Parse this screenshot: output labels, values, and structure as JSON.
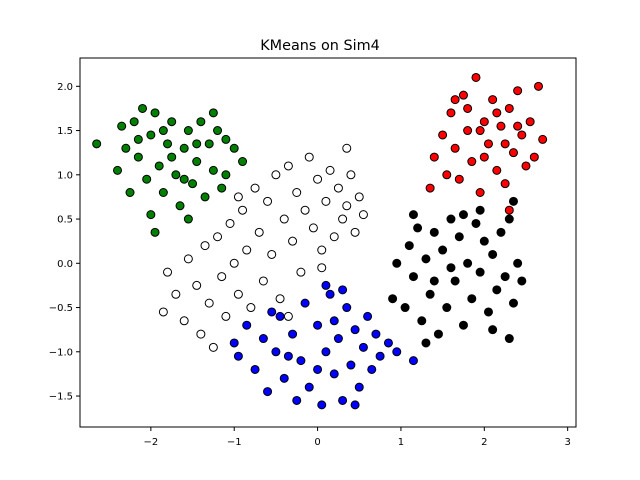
{
  "chart_data": {
    "type": "scatter",
    "title": "KMeans on Sim4",
    "xlabel": "",
    "ylabel": "",
    "xlim": [
      -2.85,
      3.1
    ],
    "ylim": [
      -1.85,
      2.32
    ],
    "x_ticks": [
      -2,
      -1,
      0,
      1,
      2,
      3
    ],
    "y_ticks": [
      -1.5,
      -1.0,
      -0.5,
      0.0,
      0.5,
      1.0,
      1.5,
      2.0
    ],
    "x_tick_labels": [
      "−2",
      "−1",
      "0",
      "1",
      "2",
      "3"
    ],
    "y_tick_labels": [
      "−1.5",
      "−1.0",
      "−0.5",
      "0.0",
      "0.5",
      "1.0",
      "1.5",
      "2.0"
    ],
    "grid": false,
    "legend": "none",
    "marker_edge_color": "#000000",
    "series": [
      {
        "color": "#008000",
        "points": [
          [
            -2.65,
            1.35
          ],
          [
            -2.4,
            1.05
          ],
          [
            -2.3,
            1.3
          ],
          [
            -2.35,
            1.55
          ],
          [
            -2.2,
            1.6
          ],
          [
            -2.15,
            1.2
          ],
          [
            -2.05,
            0.95
          ],
          [
            -2.0,
            1.45
          ],
          [
            -1.95,
            1.7
          ],
          [
            -1.9,
            1.1
          ],
          [
            -1.85,
            0.8
          ],
          [
            -1.8,
            1.35
          ],
          [
            -1.75,
            1.6
          ],
          [
            -1.7,
            1.0
          ],
          [
            -1.65,
            0.65
          ],
          [
            -1.6,
            1.3
          ],
          [
            -1.55,
            1.5
          ],
          [
            -1.5,
            0.9
          ],
          [
            -1.45,
            1.15
          ],
          [
            -1.4,
            1.6
          ],
          [
            -1.35,
            0.75
          ],
          [
            -1.3,
            1.35
          ],
          [
            -1.25,
            1.05
          ],
          [
            -1.2,
            1.5
          ],
          [
            -1.15,
            0.85
          ],
          [
            -1.1,
            1.4
          ],
          [
            -1.0,
            1.3
          ],
          [
            -0.9,
            1.15
          ],
          [
            -2.0,
            0.55
          ],
          [
            -1.95,
            0.35
          ],
          [
            -1.55,
            0.5
          ],
          [
            -1.25,
            1.7
          ],
          [
            -1.1,
            1.0
          ],
          [
            -2.25,
            0.8
          ],
          [
            -2.1,
            1.75
          ],
          [
            -1.75,
            1.2
          ],
          [
            -1.6,
            0.95
          ],
          [
            -1.85,
            1.5
          ],
          [
            -1.45,
            1.35
          ],
          [
            -2.15,
            1.4
          ]
        ]
      },
      {
        "color": "#ff0000",
        "points": [
          [
            1.35,
            0.85
          ],
          [
            1.4,
            1.2
          ],
          [
            1.5,
            1.45
          ],
          [
            1.55,
            1.0
          ],
          [
            1.6,
            1.7
          ],
          [
            1.65,
            1.3
          ],
          [
            1.7,
            0.95
          ],
          [
            1.75,
            1.9
          ],
          [
            1.8,
            1.5
          ],
          [
            1.85,
            1.15
          ],
          [
            1.9,
            2.1
          ],
          [
            1.95,
            0.8
          ],
          [
            2.0,
            1.6
          ],
          [
            2.05,
            1.35
          ],
          [
            2.1,
            1.85
          ],
          [
            2.15,
            1.05
          ],
          [
            2.2,
            1.55
          ],
          [
            2.25,
            0.9
          ],
          [
            2.3,
            1.75
          ],
          [
            2.35,
            1.25
          ],
          [
            2.4,
            1.95
          ],
          [
            2.45,
            1.45
          ],
          [
            2.5,
            1.1
          ],
          [
            2.55,
            1.6
          ],
          [
            2.6,
            1.2
          ],
          [
            2.7,
            1.4
          ],
          [
            2.3,
            0.6
          ],
          [
            2.65,
            2.0
          ],
          [
            1.65,
            1.85
          ],
          [
            2.0,
            1.2
          ],
          [
            1.8,
            1.75
          ],
          [
            2.25,
            1.35
          ],
          [
            1.95,
            1.5
          ],
          [
            2.15,
            1.7
          ],
          [
            2.4,
            1.55
          ]
        ]
      },
      {
        "color": "#0000ff",
        "points": [
          [
            -1.0,
            -0.9
          ],
          [
            -0.95,
            -1.05
          ],
          [
            -0.85,
            -0.7
          ],
          [
            -0.75,
            -1.2
          ],
          [
            -0.65,
            -0.85
          ],
          [
            -0.6,
            -1.45
          ],
          [
            -0.5,
            -1.0
          ],
          [
            -0.45,
            -0.6
          ],
          [
            -0.4,
            -1.3
          ],
          [
            -0.3,
            -0.8
          ],
          [
            -0.2,
            -1.1
          ],
          [
            -0.15,
            -0.45
          ],
          [
            -0.1,
            -1.4
          ],
          [
            0.0,
            -0.7
          ],
          [
            0.05,
            -1.6
          ],
          [
            0.1,
            -1.0
          ],
          [
            0.15,
            -0.35
          ],
          [
            0.2,
            -1.25
          ],
          [
            0.25,
            -0.85
          ],
          [
            0.3,
            -1.55
          ],
          [
            0.35,
            -0.5
          ],
          [
            0.4,
            -1.15
          ],
          [
            0.45,
            -0.75
          ],
          [
            0.5,
            -1.4
          ],
          [
            0.55,
            -0.95
          ],
          [
            0.6,
            -0.6
          ],
          [
            0.65,
            -1.2
          ],
          [
            0.7,
            -0.8
          ],
          [
            0.75,
            -1.05
          ],
          [
            0.85,
            -0.9
          ],
          [
            0.95,
            -1.0
          ],
          [
            1.15,
            -1.1
          ],
          [
            -0.25,
            -1.55
          ],
          [
            0.1,
            -0.25
          ],
          [
            -0.55,
            -0.55
          ],
          [
            0.3,
            -0.3
          ],
          [
            0.45,
            -1.6
          ],
          [
            -0.35,
            -1.05
          ],
          [
            0.0,
            -1.2
          ],
          [
            0.2,
            -0.65
          ]
        ]
      },
      {
        "color": "#000000",
        "points": [
          [
            0.9,
            -0.4
          ],
          [
            0.95,
            0.0
          ],
          [
            1.05,
            -0.5
          ],
          [
            1.1,
            0.2
          ],
          [
            1.15,
            -0.15
          ],
          [
            1.2,
            0.4
          ],
          [
            1.25,
            -0.65
          ],
          [
            1.3,
            0.05
          ],
          [
            1.35,
            -0.35
          ],
          [
            1.4,
            0.35
          ],
          [
            1.45,
            -0.8
          ],
          [
            1.5,
            0.15
          ],
          [
            1.55,
            -0.5
          ],
          [
            1.6,
            0.5
          ],
          [
            1.65,
            -0.2
          ],
          [
            1.7,
            0.3
          ],
          [
            1.75,
            -0.7
          ],
          [
            1.8,
            0.0
          ],
          [
            1.85,
            -0.4
          ],
          [
            1.9,
            0.45
          ],
          [
            1.95,
            -0.1
          ],
          [
            2.0,
            0.25
          ],
          [
            2.05,
            -0.55
          ],
          [
            2.1,
            0.1
          ],
          [
            2.15,
            -0.3
          ],
          [
            2.2,
            0.35
          ],
          [
            2.25,
            -0.15
          ],
          [
            2.3,
            0.5
          ],
          [
            2.35,
            -0.45
          ],
          [
            2.4,
            0.0
          ],
          [
            2.3,
            -0.85
          ],
          [
            2.35,
            0.7
          ],
          [
            1.15,
            0.55
          ],
          [
            1.75,
            0.55
          ],
          [
            1.4,
            -0.2
          ],
          [
            1.95,
            0.6
          ],
          [
            2.45,
            -0.2
          ],
          [
            1.6,
            -0.05
          ],
          [
            2.1,
            -0.75
          ],
          [
            1.3,
            -0.9
          ]
        ]
      },
      {
        "color": "#ffffff",
        "points": [
          [
            -1.85,
            -0.55
          ],
          [
            -1.8,
            -0.1
          ],
          [
            -1.7,
            -0.35
          ],
          [
            -1.6,
            -0.65
          ],
          [
            -1.55,
            0.05
          ],
          [
            -1.45,
            -0.25
          ],
          [
            -1.4,
            -0.8
          ],
          [
            -1.35,
            0.2
          ],
          [
            -1.3,
            -0.45
          ],
          [
            -1.2,
            0.3
          ],
          [
            -1.15,
            -0.15
          ],
          [
            -1.1,
            -0.6
          ],
          [
            -1.05,
            0.45
          ],
          [
            -1.0,
            0.0
          ],
          [
            -0.95,
            -0.35
          ],
          [
            -0.9,
            0.6
          ],
          [
            -0.85,
            0.15
          ],
          [
            -0.8,
            -0.5
          ],
          [
            -0.75,
            0.85
          ],
          [
            -0.7,
            0.35
          ],
          [
            -0.65,
            -0.2
          ],
          [
            -0.6,
            0.7
          ],
          [
            -0.55,
            0.1
          ],
          [
            -0.5,
            1.0
          ],
          [
            -0.45,
            -0.4
          ],
          [
            -0.4,
            0.5
          ],
          [
            -0.35,
            1.1
          ],
          [
            -0.3,
            0.25
          ],
          [
            -0.25,
            0.8
          ],
          [
            -0.2,
            -0.1
          ],
          [
            -0.15,
            0.6
          ],
          [
            -0.1,
            1.2
          ],
          [
            -0.05,
            0.4
          ],
          [
            0.0,
            0.95
          ],
          [
            0.05,
            0.15
          ],
          [
            0.1,
            0.7
          ],
          [
            0.15,
            1.05
          ],
          [
            0.2,
            0.3
          ],
          [
            0.25,
            0.85
          ],
          [
            0.3,
            0.5
          ],
          [
            0.35,
            0.65
          ],
          [
            0.4,
            1.0
          ],
          [
            0.45,
            0.35
          ],
          [
            0.5,
            0.75
          ],
          [
            0.55,
            0.55
          ],
          [
            0.35,
            1.3
          ],
          [
            -0.35,
            -0.6
          ],
          [
            -0.95,
            0.75
          ],
          [
            -1.25,
            -0.95
          ],
          [
            0.05,
            -0.05
          ]
        ]
      }
    ]
  }
}
